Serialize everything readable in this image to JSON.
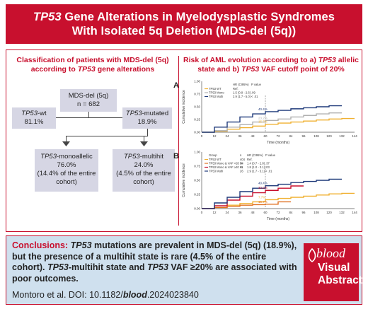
{
  "header": {
    "title_line1_gene": "TP53",
    "title_line1_rest": " Gene Alterations in Myelodysplastic Syndromes",
    "title_line2": "With Isolated 5q Deletion (MDS-del (5q))"
  },
  "left": {
    "title_line1": "Classification of patients with MDS-del (5q)",
    "title_line2_pre": "according to ",
    "title_line2_gene": "TP53",
    "title_line2_post": " gene alterations",
    "root": {
      "label": "MDS-del (5q)",
      "n": "n = 682"
    },
    "wt": {
      "gene": "TP53",
      "label": "-wt",
      "pct": "81.1%"
    },
    "mut": {
      "gene": "TP53",
      "label": "-mutated",
      "pct": "18.9%"
    },
    "mono": {
      "gene": "TP53",
      "label": "-monoallelic",
      "pct": "76.0%",
      "note1": "(14.4% of the entire",
      "note2": "cohort)"
    },
    "multi": {
      "gene": "TP53",
      "label": "-multihit",
      "pct": "24.0%",
      "note1": "(4.5% of the entire",
      "note2": "cohort)"
    }
  },
  "right": {
    "title_line1": "Risk of AML evolution according to a) ",
    "title_gene1": "TP53",
    "title_line1b": " allelic",
    "title_line2a": "state and b) ",
    "title_gene2": "TP53",
    "title_line2b": " VAF cutoff point of 20%"
  },
  "chart_data": [
    {
      "type": "line",
      "label": "A",
      "xlabel": "Time (months)",
      "ylabel": "Cumulative incidence",
      "xlim": [
        0,
        144
      ],
      "ylim": [
        0,
        1.0
      ],
      "x_ticks": [
        0,
        12,
        24,
        36,
        48,
        60,
        72,
        84,
        96,
        108,
        120,
        132,
        144
      ],
      "y_ticks": [
        0,
        0.25,
        0.5,
        0.75,
        1.0
      ],
      "legend_header": [
        "",
        "HR (CI95%)",
        "P value"
      ],
      "legend_rows": [
        [
          "TP53 WT",
          "Ref.",
          ""
        ],
        [
          "TP53 Mono",
          "1.5 (0.9 - 2.6)",
          ".09"
        ],
        [
          "TP53 Multi",
          "2.9 (1.7 - 5.0)",
          "< .01"
        ]
      ],
      "annotations": [
        "40.4%",
        "23.2%",
        "15.7%"
      ],
      "series": [
        {
          "name": "TP53 WT",
          "color": "#f0b030",
          "x": [
            0,
            12,
            24,
            36,
            48,
            60,
            72,
            84,
            96,
            108,
            120,
            132,
            144
          ],
          "y": [
            0,
            0.02,
            0.06,
            0.09,
            0.12,
            0.157,
            0.18,
            0.2,
            0.22,
            0.24,
            0.26,
            0.27,
            0.27
          ]
        },
        {
          "name": "TP53 Mono",
          "color": "#b0b0b0",
          "x": [
            0,
            12,
            24,
            36,
            48,
            60,
            72,
            84,
            96,
            108,
            120,
            132
          ],
          "y": [
            0,
            0.03,
            0.1,
            0.15,
            0.2,
            0.232,
            0.26,
            0.3,
            0.33,
            0.36,
            0.38,
            0.38
          ]
        },
        {
          "name": "TP53 Multi",
          "color": "#1f3a7a",
          "x": [
            0,
            12,
            24,
            36,
            48,
            60,
            72,
            84,
            96,
            108,
            120,
            132
          ],
          "y": [
            0,
            0.1,
            0.2,
            0.3,
            0.36,
            0.404,
            0.43,
            0.46,
            0.48,
            0.5,
            0.52,
            0.52
          ]
        }
      ]
    },
    {
      "type": "line",
      "label": "B",
      "xlabel": "Time (months)",
      "ylabel": "Cumulative incidence",
      "xlim": [
        0,
        144
      ],
      "ylim": [
        0,
        1.0
      ],
      "x_ticks": [
        0,
        12,
        24,
        36,
        48,
        60,
        72,
        84,
        96,
        108,
        120,
        132,
        144
      ],
      "y_ticks": [
        0,
        0.25,
        0.5,
        0.75,
        1.0
      ],
      "legend_header": [
        "Group",
        "n",
        "HR (CI95%)",
        "P value"
      ],
      "legend_rows": [
        [
          "TP53 WT",
          "404",
          "Ref.",
          ""
        ],
        [
          "TP53 Mono & VAF <20 %",
          "34",
          "1.4 (0.7 - 2.8)",
          ".37"
        ],
        [
          "TP53 Mono & VAF ≥20 %",
          "41",
          "1.8 (1.0 - 3.1)",
          ".03"
        ],
        [
          "TP53 Multi",
          "26",
          "2.9 (1.7 - 5.1)",
          "< .01"
        ]
      ],
      "annotations": [
        "40.4%",
        "32.2%",
        "15.7%",
        "7.7%"
      ],
      "series": [
        {
          "name": "TP53 WT",
          "color": "#f0b030",
          "x": [
            0,
            12,
            24,
            36,
            48,
            60,
            72,
            84,
            96,
            108,
            120,
            132,
            144
          ],
          "y": [
            0,
            0.02,
            0.06,
            0.09,
            0.12,
            0.157,
            0.18,
            0.2,
            0.22,
            0.24,
            0.26,
            0.27,
            0.27
          ]
        },
        {
          "name": "TP53 Mono & VAF <20 %",
          "color": "#e07020",
          "x": [
            0,
            12,
            24,
            36,
            48,
            60,
            72,
            84
          ],
          "y": [
            0,
            0.02,
            0.04,
            0.06,
            0.07,
            0.077,
            0.12,
            0.12
          ]
        },
        {
          "name": "TP53 Mono & VAF ≥20 %",
          "color": "#c8102e",
          "x": [
            0,
            12,
            24,
            36,
            48,
            60,
            72,
            84,
            96
          ],
          "y": [
            0,
            0.05,
            0.15,
            0.22,
            0.28,
            0.322,
            0.36,
            0.4,
            0.4
          ]
        },
        {
          "name": "TP53 Multi",
          "color": "#1f3a7a",
          "x": [
            0,
            12,
            24,
            36,
            48,
            60,
            72,
            84,
            96,
            108,
            120,
            132
          ],
          "y": [
            0,
            0.1,
            0.2,
            0.3,
            0.36,
            0.404,
            0.43,
            0.46,
            0.48,
            0.5,
            0.52,
            0.52
          ]
        }
      ]
    }
  ],
  "footer": {
    "lead": "Conclusions:",
    "gene1": "TP53",
    "t1": " mutations are prevalent in MDS-del (5q) (18.9%), but the presence of a multihit state is rare (4.5% of the entire cohort). ",
    "gene2": "TP53",
    "t2": "-multihit state and ",
    "gene3": "TP53",
    "t3": " VAF ≥20% are associated with poor outcomes.",
    "cite_pre": "Montoro et al. DOI: 10.1182/",
    "cite_bold": "blood",
    "cite_post": ".2024023840",
    "badge_blood": "blood",
    "badge_line1": "Visual",
    "badge_line2": "Abstract"
  },
  "colors": {
    "brand": "#c8102e",
    "box": "#d6d6e4",
    "footer_bg": "#cfe0ee"
  }
}
